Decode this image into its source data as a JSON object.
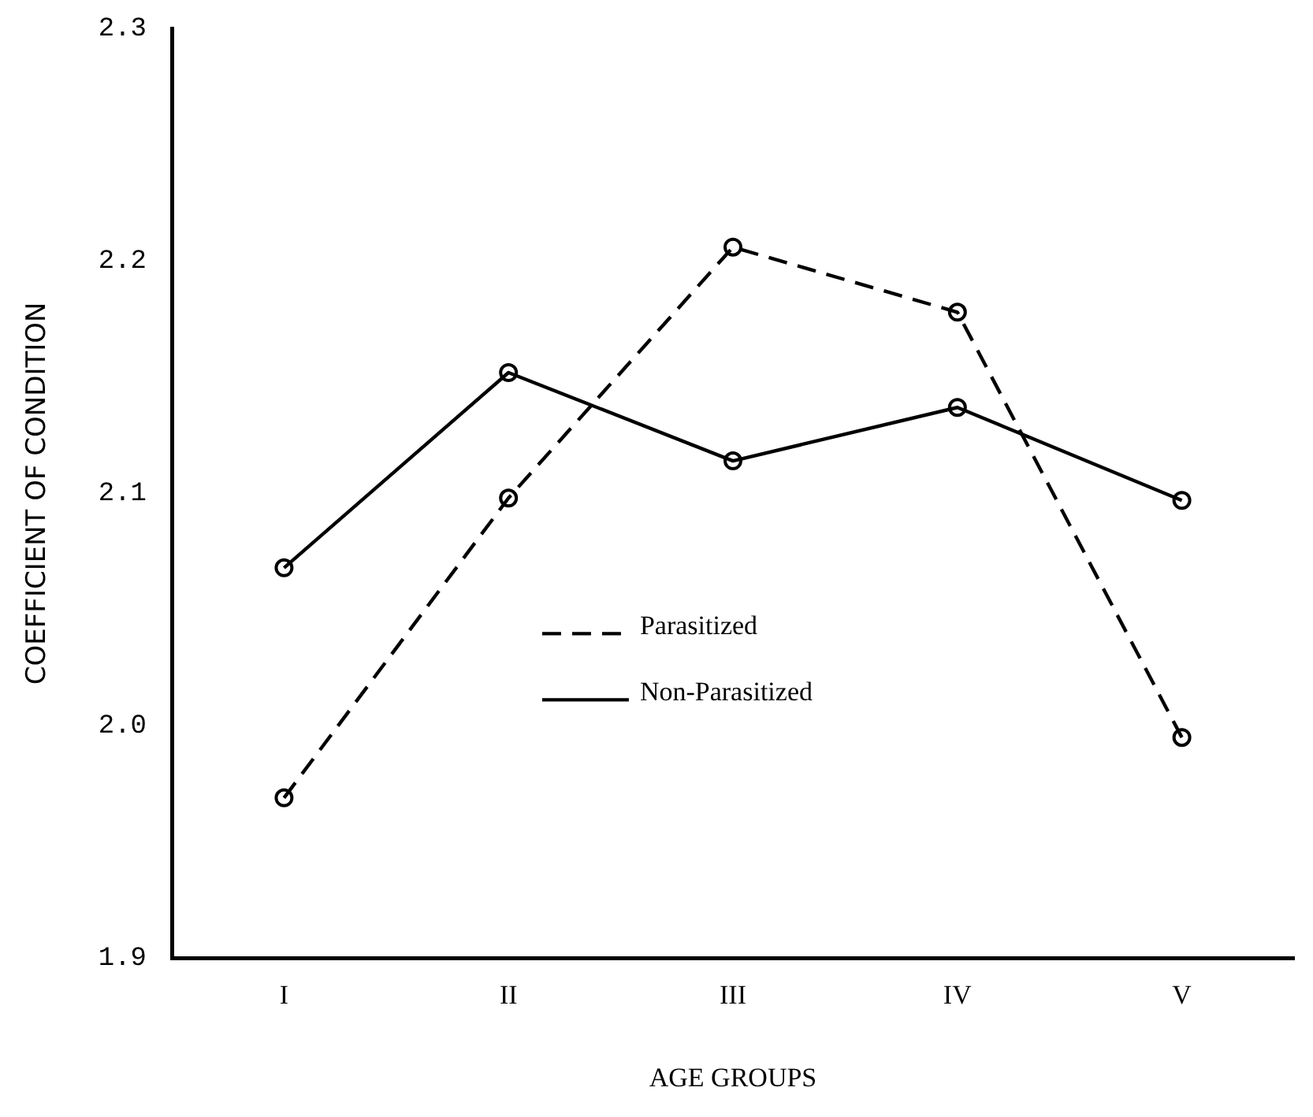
{
  "chart_data": {
    "type": "line",
    "xlabel": "AGE GROUPS",
    "ylabel": "COEFFICIENT OF CONDITION",
    "categories": [
      "I",
      "II",
      "III",
      "IV",
      "V"
    ],
    "series": [
      {
        "name": "Parasitized",
        "color": "#000000",
        "line_style": "dashed",
        "values": [
          1.969,
          2.098,
          2.206,
          2.178,
          1.995
        ]
      },
      {
        "name": "Non-Parasitized",
        "color": "#000000",
        "line_style": "solid",
        "values": [
          2.068,
          2.152,
          2.114,
          2.137,
          2.097
        ]
      }
    ],
    "ylim": [
      1.9,
      2.3
    ],
    "yticks": [
      1.9,
      {
        "value": 2,
        "label": "2.0"
      },
      2.1,
      2.2,
      2.3
    ],
    "grid": false,
    "legend": "bottom",
    "marker": "circle"
  }
}
